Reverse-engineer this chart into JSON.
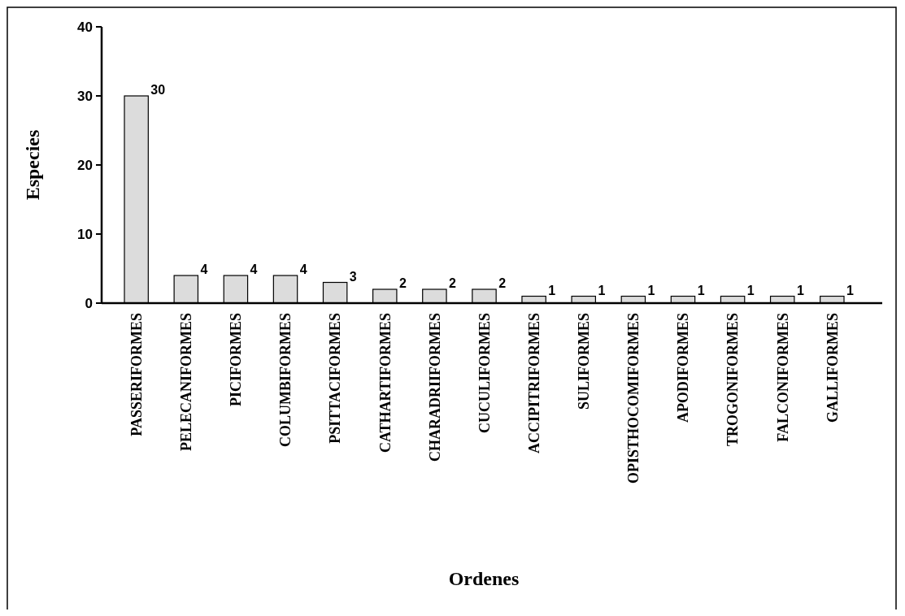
{
  "chart_data": {
    "type": "bar",
    "xlabel": "Ordenes",
    "ylabel": "Especies",
    "categories": [
      "PASSERIFORMES",
      "PELECANIFORMES",
      "PICIFORMES",
      "COLUMBIFORMES",
      "PSITTACIFORMES",
      "CATHARTIFORMES",
      "CHARADRIIFORMES",
      "CUCULIFORMES",
      "ACCIPITRIFORMES",
      "SULIFORMES",
      "OPISTHOCOMIFORMES",
      "APODIFORMES",
      "TROGONIFORMES",
      "FALCONIFORMES",
      "GALLIFORMES"
    ],
    "values": [
      30,
      4,
      4,
      4,
      3,
      2,
      2,
      2,
      1,
      1,
      1,
      1,
      1,
      1,
      1
    ],
    "color": "#dcdcdc",
    "ylim": [
      0,
      40
    ],
    "yticks": [
      0,
      10,
      20,
      30,
      40
    ],
    "data_labels": true,
    "grid": false
  }
}
